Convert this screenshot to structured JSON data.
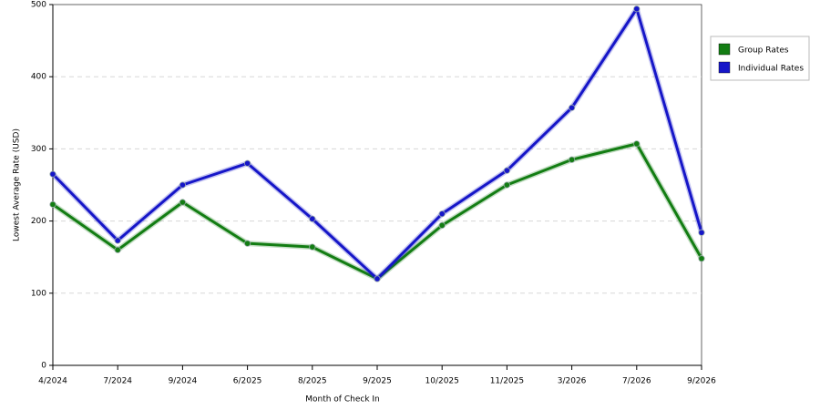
{
  "chart_data": {
    "type": "line",
    "xlabel": "Month of Check In",
    "ylabel": "Lowest Average Rate (USD)",
    "categories": [
      "4/2024",
      "7/2024",
      "9/2024",
      "6/2025",
      "8/2025",
      "9/2025",
      "10/2025",
      "11/2025",
      "3/2026",
      "7/2026",
      "9/2026"
    ],
    "series": [
      {
        "name": "Group Rates",
        "color": "#137d13",
        "values": [
          223,
          160,
          226,
          169,
          164,
          120,
          194,
          250,
          285,
          307,
          148
        ]
      },
      {
        "name": "Individual Rates",
        "color": "#1616c8",
        "values": [
          265,
          173,
          250,
          280,
          203,
          120,
          210,
          270,
          357,
          494,
          184
        ]
      }
    ],
    "ylim": [
      0,
      500
    ],
    "yticks": [
      0,
      100,
      200,
      300,
      400,
      500
    ],
    "grid": true,
    "legend": "right"
  }
}
